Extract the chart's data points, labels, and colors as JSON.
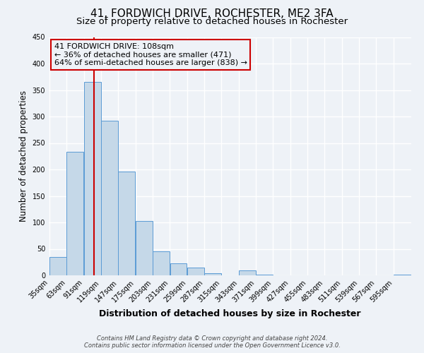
{
  "title": "41, FORDWICH DRIVE, ROCHESTER, ME2 3FA",
  "subtitle": "Size of property relative to detached houses in Rochester",
  "xlabel": "Distribution of detached houses by size in Rochester",
  "ylabel": "Number of detached properties",
  "bin_labels": [
    "35sqm",
    "63sqm",
    "91sqm",
    "119sqm",
    "147sqm",
    "175sqm",
    "203sqm",
    "231sqm",
    "259sqm",
    "287sqm",
    "315sqm",
    "343sqm",
    "371sqm",
    "399sqm",
    "427sqm",
    "455sqm",
    "483sqm",
    "511sqm",
    "539sqm",
    "567sqm",
    "595sqm"
  ],
  "bar_values": [
    35,
    233,
    365,
    292,
    196,
    103,
    45,
    23,
    15,
    4,
    0,
    10,
    1,
    0,
    0,
    0,
    0,
    0,
    0,
    0,
    2
  ],
  "bar_color": "#c5d8e8",
  "bar_edge_color": "#5b9bd5",
  "vline_x": 108,
  "bin_edges": [
    35,
    63,
    91,
    119,
    147,
    175,
    203,
    231,
    259,
    287,
    315,
    343,
    371,
    399,
    427,
    455,
    483,
    511,
    539,
    567,
    595
  ],
  "bin_width": 28,
  "annotation_line1": "41 FORDWICH DRIVE: 108sqm",
  "annotation_line2": "← 36% of detached houses are smaller (471)",
  "annotation_line3": "64% of semi-detached houses are larger (838) →",
  "annotation_box_color": "#cc0000",
  "ylim": [
    0,
    450
  ],
  "yticks": [
    0,
    50,
    100,
    150,
    200,
    250,
    300,
    350,
    400,
    450
  ],
  "footer1": "Contains HM Land Registry data © Crown copyright and database right 2024.",
  "footer2": "Contains public sector information licensed under the Open Government Licence v3.0.",
  "bg_color": "#eef2f7",
  "grid_color": "#ffffff",
  "title_fontsize": 11,
  "subtitle_fontsize": 9.5,
  "xlabel_fontsize": 9,
  "ylabel_fontsize": 8.5,
  "tick_fontsize": 7,
  "annot_fontsize": 8,
  "footer_fontsize": 6
}
